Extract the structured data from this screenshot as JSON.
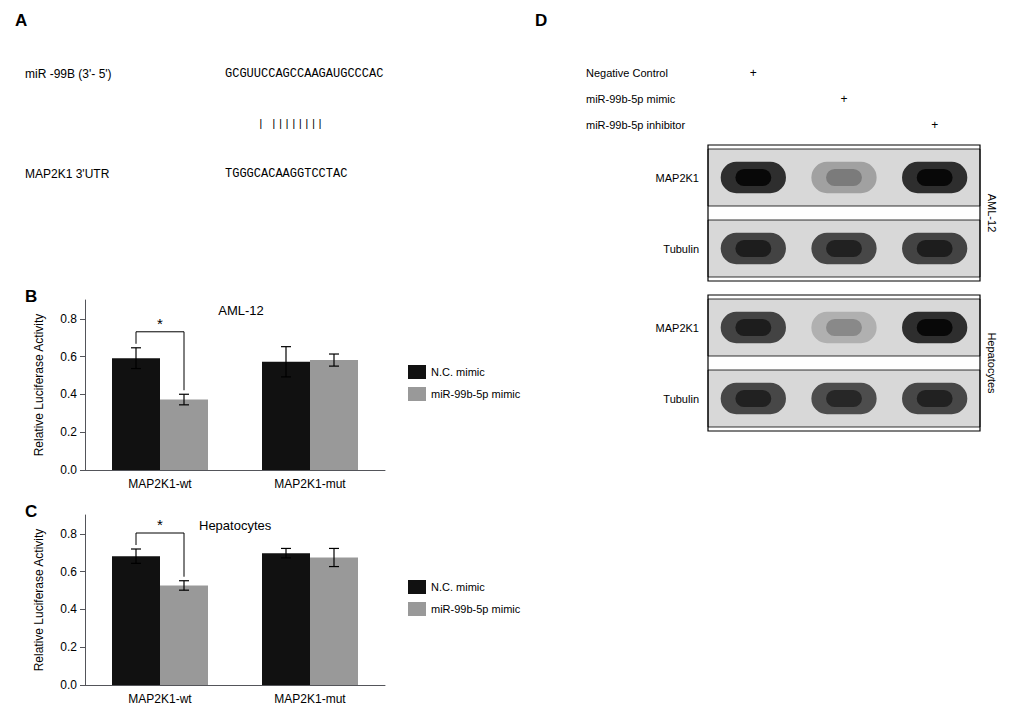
{
  "chart_data": [
    {
      "type": "alignment",
      "panel_label": "A",
      "rows": [
        {
          "label": "miR -99B (3'- 5')",
          "sequence": "GCGUUCCAGCCAAGAUGCCCAC"
        },
        {
          "sequence": "| ||||||||"
        },
        {
          "label": "MAP2K1 3'UTR",
          "sequence": "TGGGCACAAGGTCCTAC"
        }
      ]
    },
    {
      "type": "bar",
      "panel_label": "B",
      "title": "AML-12",
      "categories": [
        "MAP2K1-wt",
        "MAP2K1-mut"
      ],
      "series": [
        {
          "name": "N.C. mimic",
          "color": "#111111",
          "values": [
            0.592,
            0.573
          ],
          "errors": [
            0.055,
            0.08
          ]
        },
        {
          "name": "miR-99b-5p mimic",
          "color": "#999999",
          "values": [
            0.373,
            0.582
          ],
          "errors": [
            0.028,
            0.032
          ]
        }
      ],
      "ylabel": "Relative Luciferase Activity",
      "ylim": [
        0,
        0.9
      ],
      "yticks": [
        {
          "value": 0,
          "label": "0.0"
        },
        0.2,
        0.4,
        0.6,
        0.8
      ],
      "grid": false,
      "legend": "right",
      "annotations": [
        {
          "text": "*",
          "category": "MAP2K1-wt"
        }
      ]
    },
    {
      "type": "bar",
      "panel_label": "C",
      "title": "Hepatocytes",
      "categories": [
        "MAP2K1-wt",
        "MAP2K1-mut"
      ],
      "series": [
        {
          "name": "N.C. mimic",
          "color": "#111111",
          "values": [
            0.682,
            0.698
          ],
          "errors": [
            0.038,
            0.025
          ]
        },
        {
          "name": "miR-99b-5p mimic",
          "color": "#999999",
          "values": [
            0.527,
            0.675
          ],
          "errors": [
            0.025,
            0.048
          ]
        }
      ],
      "ylabel": "Relative Luciferase Activity",
      "ylim": [
        0,
        0.9
      ],
      "yticks": [
        {
          "value": 0,
          "label": "0.0"
        },
        0.2,
        0.4,
        0.6,
        0.8
      ],
      "grid": false,
      "legend": "right",
      "annotations": [
        {
          "text": "*",
          "category": "MAP2K1-wt"
        }
      ]
    },
    {
      "type": "blot",
      "panel_label": "D",
      "categories": [
        "Negative Control",
        "miR-99b-5p mimic",
        "miR-99b-5p inhibitor"
      ],
      "lane_mark": "+",
      "series": [
        {
          "name": "MAP2K1",
          "group": "AML-12",
          "values": [
            1.0,
            0.45,
            1.0
          ]
        },
        {
          "name": "Tubulin",
          "group": "AML-12",
          "values": [
            0.9,
            0.88,
            0.9
          ]
        },
        {
          "name": "MAP2K1",
          "group": "Hepatocytes",
          "values": [
            0.9,
            0.38,
            1.0
          ]
        },
        {
          "name": "Tubulin",
          "group": "Hepatocytes",
          "values": [
            0.88,
            0.85,
            0.88
          ]
        }
      ]
    }
  ]
}
